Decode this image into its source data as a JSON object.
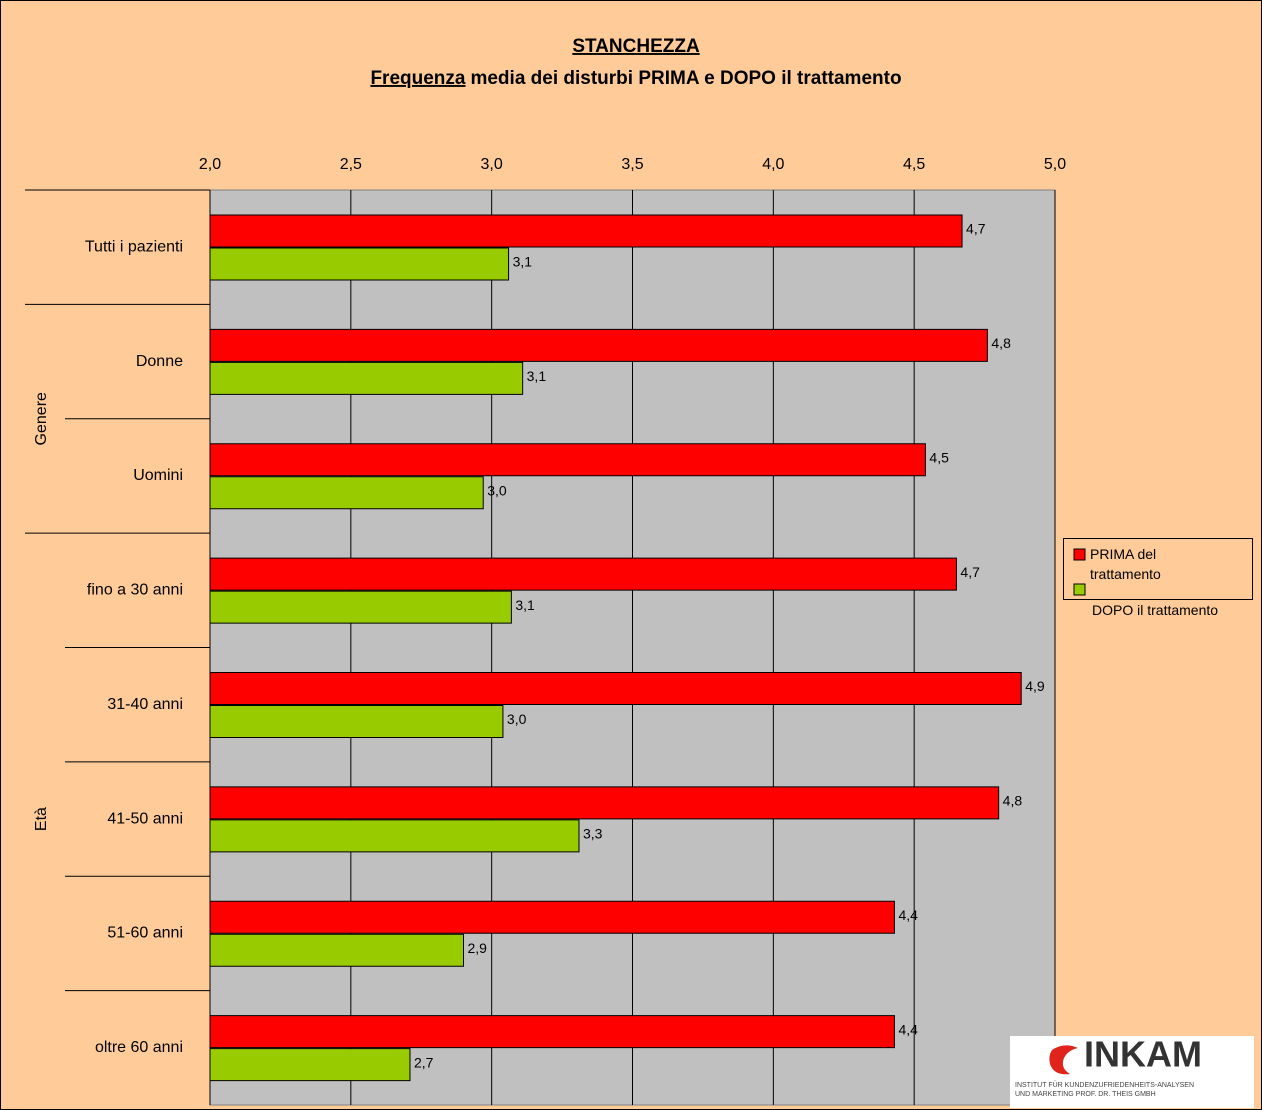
{
  "chart_data": {
    "type": "bar",
    "orientation": "horizontal",
    "title": "STANCHEZZA",
    "subtitle": [
      "Frequenza",
      "media dei disturbi PRIMA e DOPO il trattamento"
    ],
    "categories": [
      "Tutti i pazienti",
      "Donne",
      "Uomini",
      "fino a 30 anni",
      "31-40 anni",
      "41-50 anni",
      "51-60 anni",
      "oltre 60 anni"
    ],
    "groups": [
      "Genere",
      "Età"
    ],
    "series": [
      {
        "name": "PRIMA del trattamento",
        "color": "#ff0000",
        "values": [
          4.67,
          4.76,
          4.54,
          4.65,
          4.88,
          4.8,
          4.43,
          4.43
        ],
        "value_labels": [
          "4,7",
          "4,8",
          "4,5",
          "4,7",
          "4,9",
          "4,8",
          "4,4",
          "4,4"
        ]
      },
      {
        "name": "DOPO il trattamento",
        "color": "#99cc00",
        "values": [
          3.06,
          3.11,
          2.97,
          3.07,
          3.04,
          3.31,
          2.9,
          2.71
        ],
        "value_labels": [
          "3,1",
          "3,1",
          "3,0",
          "3,1",
          "3,0",
          "3,3",
          "2,9",
          "2,7"
        ]
      }
    ],
    "xlim": [
      2,
      5
    ],
    "xticks": [
      {
        "value": 2,
        "label": "2,0"
      },
      {
        "value": 2.5,
        "label": "2,5"
      },
      {
        "value": 3,
        "label": "3,0"
      },
      {
        "value": 3.5,
        "label": "3,5"
      },
      {
        "value": 4,
        "label": "4,0"
      },
      {
        "value": 4.5,
        "label": "4,5"
      },
      {
        "value": 5,
        "label": "5,0"
      }
    ],
    "grid": true,
    "legend": "right"
  },
  "logo": {
    "name": "INKAM",
    "tagline": [
      "INSTITUT FÜR KUNDENZUFRIEDENHEITS-ANALYSEN",
      "UND MARKETING PROF. DR. THEIS GMBH"
    ]
  }
}
